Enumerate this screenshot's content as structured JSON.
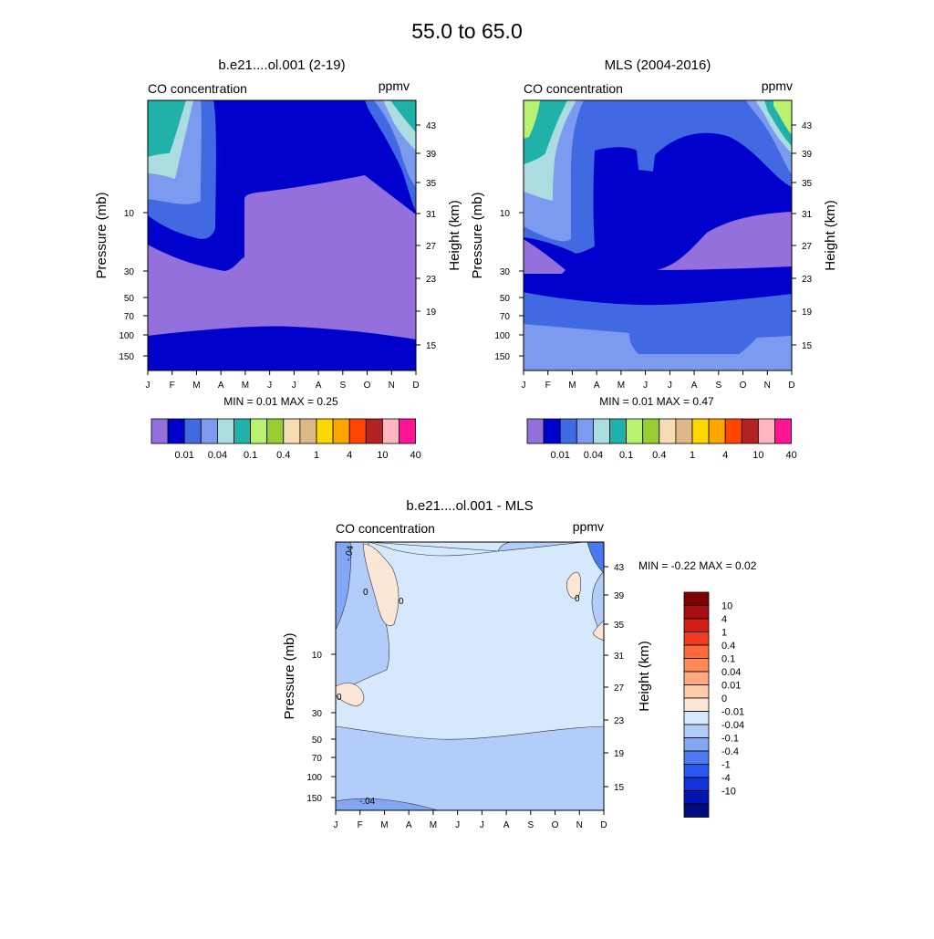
{
  "figure_title": "55.0 to  65.0",
  "colors": {
    "c0": "#9370DB",
    "c1": "#0000CD",
    "c2": "#4169E1",
    "c3": "#7B9AF0",
    "c4": "#ABDCE0",
    "c5": "#20B2AA",
    "c6": "#B9F26E",
    "c7": "#9ACD32",
    "c8": "#F5DEB3",
    "c9": "#DEB887",
    "c10": "#FFD700",
    "c11": "#FFA500",
    "c12": "#FF4500",
    "c13": "#B22222",
    "c14": "#FFB6C1",
    "c15": "#FF1493",
    "d_pale": "#D6E9FC",
    "d_light": "#B3CDFB",
    "d_mid": "#84A7F5",
    "d_blue": "#4A7AF2",
    "d_pos1": "#FCE6D6"
  },
  "chart_data": [
    {
      "type": "heatmap",
      "title": "b.e21....ol.001 (2-19)",
      "left_label": "CO concentration",
      "right_label": "ppmv",
      "x": [
        "J",
        "F",
        "M",
        "A",
        "M",
        "J",
        "J",
        "A",
        "S",
        "O",
        "N",
        "D"
      ],
      "ylabel": "Pressure (mb)",
      "yticks": [
        "10",
        "30",
        "50",
        "70",
        "100",
        "150"
      ],
      "ylabel_right": "Height (km)",
      "yticks_right": [
        "43",
        "39",
        "35",
        "31",
        "27",
        "23",
        "19",
        "15"
      ],
      "min_label": "MIN =   0.01  MAX =   0.25",
      "colorbar_labels": [
        "0.01",
        "0.04",
        "0.1",
        "0.4",
        "1",
        "4",
        "10",
        "40"
      ]
    },
    {
      "type": "heatmap",
      "title": "MLS (2004-2016)",
      "left_label": "CO concentration",
      "right_label": "ppmv",
      "x": [
        "J",
        "F",
        "M",
        "A",
        "M",
        "J",
        "J",
        "A",
        "S",
        "O",
        "N",
        "D"
      ],
      "ylabel": "Pressure (mb)",
      "yticks": [
        "10",
        "30",
        "50",
        "70",
        "100",
        "150"
      ],
      "ylabel_right": "Height (km)",
      "yticks_right": [
        "43",
        "39",
        "35",
        "31",
        "27",
        "23",
        "19",
        "15"
      ],
      "min_label": "MIN =   0.01  MAX =   0.47",
      "colorbar_labels": [
        "0.01",
        "0.04",
        "0.1",
        "0.4",
        "1",
        "4",
        "10",
        "40"
      ]
    },
    {
      "type": "heatmap",
      "title": "b.e21....ol.001 - MLS",
      "left_label": "CO concentration",
      "right_label": "ppmv",
      "x": [
        "J",
        "F",
        "M",
        "A",
        "M",
        "J",
        "J",
        "A",
        "S",
        "O",
        "N",
        "D"
      ],
      "ylabel": "Pressure (mb)",
      "yticks": [
        "10",
        "30",
        "50",
        "70",
        "100",
        "150"
      ],
      "ylabel_right": "Height (km)",
      "yticks_right": [
        "43",
        "39",
        "35",
        "31",
        "27",
        "23",
        "19",
        "15"
      ],
      "min_label": "MIN =  -0.22  MAX =   0.02",
      "colorbar_labels": [
        "10",
        "4",
        "1",
        "0.4",
        "0.1",
        "0.04",
        "0.01",
        "0",
        "-0.01",
        "-0.04",
        "-0.1",
        "-0.4",
        "-1",
        "-4",
        "-10"
      ],
      "contour_labels": [
        "-.04",
        "0",
        "0",
        "0",
        "0",
        "-.04"
      ]
    }
  ]
}
